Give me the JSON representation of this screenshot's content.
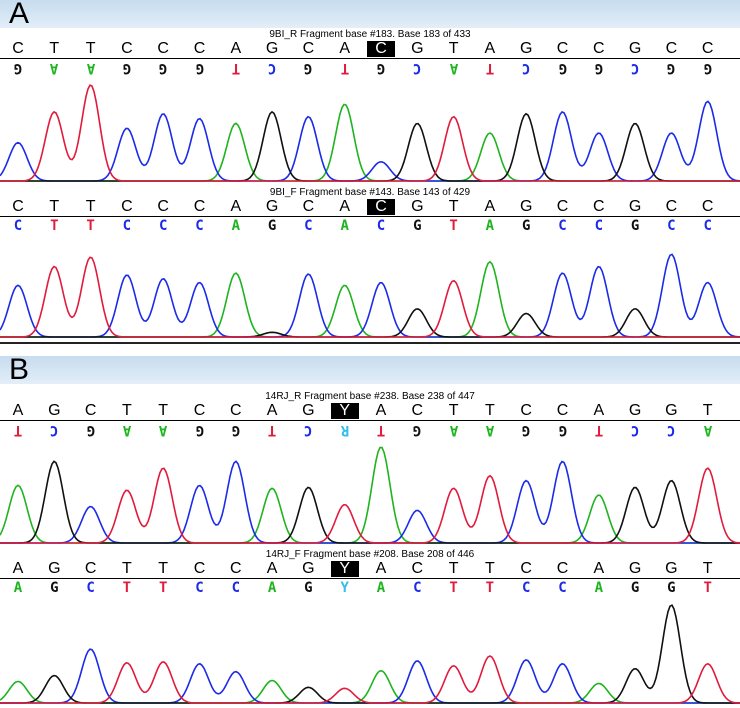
{
  "colors": {
    "A": "#1fb41f",
    "C": "#1b2be8",
    "G": "#111111",
    "T": "#e01b3c",
    "Y": "#34bde8",
    "R": "#34bde8"
  },
  "panels": [
    {
      "letter": "A",
      "traces": [
        {
          "title": "9BI_R Fragment base #183. Base 183 of 433",
          "reference": [
            "C",
            "T",
            "T",
            "C",
            "C",
            "C",
            "A",
            "G",
            "C",
            "A",
            "C",
            "G",
            "T",
            "A",
            "G",
            "C",
            "C",
            "G",
            "C",
            "C"
          ],
          "highlight_index": 10,
          "calls": [
            "G",
            "A",
            "A",
            "G",
            "G",
            "G",
            "T",
            "C",
            "G",
            "T",
            "G",
            "C",
            "A",
            "T",
            "C",
            "G",
            "G",
            "C",
            "G",
            "G"
          ],
          "calls_inverted": true,
          "peaks": [
            {
              "base": "C",
              "height": 0.4
            },
            {
              "base": "T",
              "height": 0.72
            },
            {
              "base": "T",
              "height": 1.0
            },
            {
              "base": "C",
              "height": 0.55
            },
            {
              "base": "C",
              "height": 0.7
            },
            {
              "base": "C",
              "height": 0.65
            },
            {
              "base": "A",
              "height": 0.6
            },
            {
              "base": "G",
              "height": 0.72
            },
            {
              "base": "C",
              "height": 0.67
            },
            {
              "base": "A",
              "height": 0.8
            },
            {
              "base": "C",
              "height": 0.2
            },
            {
              "base": "G",
              "height": 0.6
            },
            {
              "base": "T",
              "height": 0.67
            },
            {
              "base": "A",
              "height": 0.5
            },
            {
              "base": "G",
              "height": 0.7
            },
            {
              "base": "C",
              "height": 0.72
            },
            {
              "base": "C",
              "height": 0.5
            },
            {
              "base": "G",
              "height": 0.6
            },
            {
              "base": "C",
              "height": 0.5
            },
            {
              "base": "C",
              "height": 0.83
            }
          ]
        },
        {
          "title": "9BI_F Fragment base #143. Base 143 of 429",
          "reference": [
            "C",
            "T",
            "T",
            "C",
            "C",
            "C",
            "A",
            "G",
            "C",
            "A",
            "C",
            "G",
            "T",
            "A",
            "G",
            "C",
            "C",
            "G",
            "C",
            "C"
          ],
          "highlight_index": 10,
          "calls": [
            "C",
            "T",
            "T",
            "C",
            "C",
            "C",
            "A",
            "G",
            "C",
            "A",
            "C",
            "G",
            "T",
            "A",
            "G",
            "C",
            "C",
            "G",
            "C",
            "C"
          ],
          "calls_inverted": false,
          "peaks": [
            {
              "base": "C",
              "height": 0.55
            },
            {
              "base": "T",
              "height": 0.75
            },
            {
              "base": "T",
              "height": 0.85
            },
            {
              "base": "C",
              "height": 0.66
            },
            {
              "base": "C",
              "height": 0.62
            },
            {
              "base": "C",
              "height": 0.58
            },
            {
              "base": "A",
              "height": 0.68
            },
            {
              "base": "G",
              "height": 0.05
            },
            {
              "base": "C",
              "height": 0.67
            },
            {
              "base": "A",
              "height": 0.55
            },
            {
              "base": "C",
              "height": 0.58
            },
            {
              "base": "G",
              "height": 0.3
            },
            {
              "base": "T",
              "height": 0.6
            },
            {
              "base": "A",
              "height": 0.8
            },
            {
              "base": "G",
              "height": 0.25
            },
            {
              "base": "C",
              "height": 0.68
            },
            {
              "base": "C",
              "height": 0.75
            },
            {
              "base": "G",
              "height": 0.3
            },
            {
              "base": "C",
              "height": 0.88
            },
            {
              "base": "C",
              "height": 0.58
            }
          ]
        }
      ]
    },
    {
      "letter": "B",
      "traces": [
        {
          "title": "14RJ_R Fragment base #238. Base 238 of 447",
          "reference": [
            "A",
            "G",
            "C",
            "T",
            "T",
            "C",
            "C",
            "A",
            "G",
            "Y",
            "A",
            "C",
            "T",
            "T",
            "C",
            "C",
            "A",
            "G",
            "G",
            "T"
          ],
          "highlight_index": 9,
          "calls": [
            "T",
            "C",
            "G",
            "A",
            "A",
            "G",
            "G",
            "T",
            "C",
            "R",
            "T",
            "G",
            "A",
            "A",
            "G",
            "G",
            "T",
            "C",
            "C",
            "A"
          ],
          "calls_inverted": true,
          "peaks": [
            {
              "base": "A",
              "height": 0.6
            },
            {
              "base": "G",
              "height": 0.85
            },
            {
              "base": "C",
              "height": 0.38
            },
            {
              "base": "T",
              "height": 0.55
            },
            {
              "base": "T",
              "height": 0.78
            },
            {
              "base": "C",
              "height": 0.6
            },
            {
              "base": "C",
              "height": 0.85
            },
            {
              "base": "A",
              "height": 0.57
            },
            {
              "base": "G",
              "height": 0.58
            },
            {
              "base": "T",
              "height": 0.4
            },
            {
              "base": "A",
              "height": 1.0
            },
            {
              "base": "C",
              "height": 0.34
            },
            {
              "base": "T",
              "height": 0.57
            },
            {
              "base": "T",
              "height": 0.7
            },
            {
              "base": "C",
              "height": 0.65
            },
            {
              "base": "C",
              "height": 0.85
            },
            {
              "base": "A",
              "height": 0.5
            },
            {
              "base": "G",
              "height": 0.58
            },
            {
              "base": "G",
              "height": 0.65
            },
            {
              "base": "T",
              "height": 0.78
            }
          ]
        },
        {
          "title": "14RJ_F Fragment base #208. Base 208 of 446",
          "reference": [
            "A",
            "G",
            "C",
            "T",
            "T",
            "C",
            "C",
            "A",
            "G",
            "Y",
            "A",
            "C",
            "T",
            "T",
            "C",
            "C",
            "A",
            "G",
            "G",
            "T"
          ],
          "highlight_index": 9,
          "calls": [
            "A",
            "G",
            "C",
            "T",
            "T",
            "C",
            "C",
            "A",
            "G",
            "Y",
            "A",
            "C",
            "T",
            "T",
            "C",
            "C",
            "A",
            "G",
            "G",
            "T"
          ],
          "calls_inverted": false,
          "peaks": [
            {
              "base": "A",
              "height": 0.22
            },
            {
              "base": "G",
              "height": 0.28
            },
            {
              "base": "C",
              "height": 0.55
            },
            {
              "base": "T",
              "height": 0.41
            },
            {
              "base": "T",
              "height": 0.42
            },
            {
              "base": "C",
              "height": 0.4
            },
            {
              "base": "C",
              "height": 0.32
            },
            {
              "base": "A",
              "height": 0.23
            },
            {
              "base": "G",
              "height": 0.16
            },
            {
              "base": "T",
              "height": 0.15
            },
            {
              "base": "A",
              "height": 0.33
            },
            {
              "base": "C",
              "height": 0.43
            },
            {
              "base": "T",
              "height": 0.38
            },
            {
              "base": "T",
              "height": 0.48
            },
            {
              "base": "C",
              "height": 0.44
            },
            {
              "base": "C",
              "height": 0.4
            },
            {
              "base": "A",
              "height": 0.2
            },
            {
              "base": "G",
              "height": 0.35
            },
            {
              "base": "G",
              "height": 1.0
            },
            {
              "base": "T",
              "height": 0.4
            }
          ]
        }
      ]
    }
  ]
}
